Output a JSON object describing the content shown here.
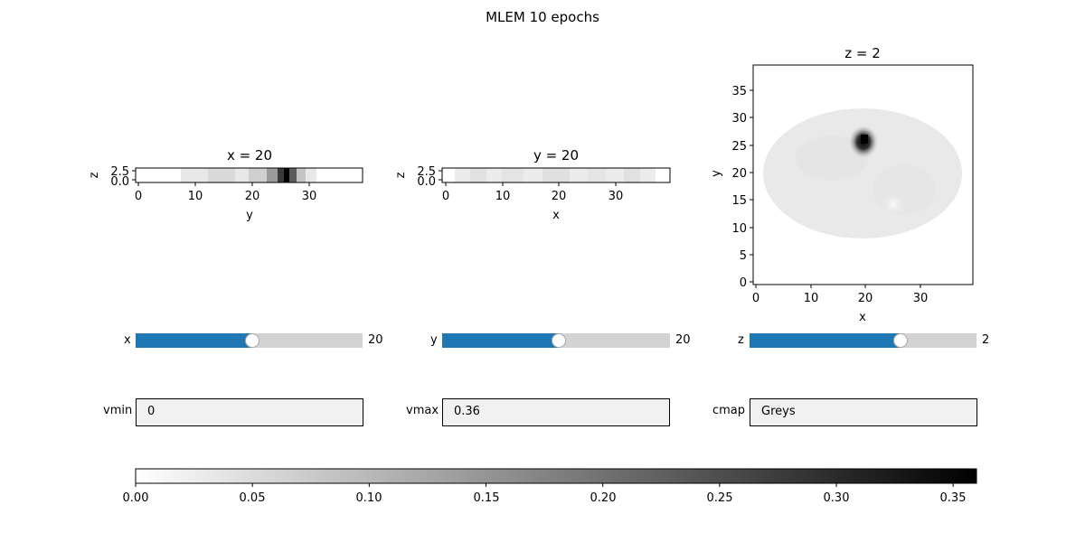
{
  "figure": {
    "title": "MLEM 10 epochs"
  },
  "panels": {
    "x_slice": {
      "title": "x = 20",
      "xlabel": "y",
      "ylabel": "z",
      "xticks": [
        "0",
        "10",
        "20",
        "30"
      ],
      "yticks": [
        "2.5",
        "0.0"
      ]
    },
    "y_slice": {
      "title": "y = 20",
      "xlabel": "x",
      "ylabel": "z",
      "xticks": [
        "0",
        "10",
        "20",
        "30"
      ],
      "yticks": [
        "2.5",
        "0.0"
      ]
    },
    "z_slice": {
      "title": "z = 2",
      "xlabel": "x",
      "ylabel": "y",
      "xticks": [
        "0",
        "10",
        "20",
        "30"
      ],
      "yticks": [
        "35",
        "30",
        "25",
        "20",
        "15",
        "10",
        "5",
        "0"
      ]
    }
  },
  "sliders": {
    "x": {
      "label": "x",
      "value": "20",
      "min": 0,
      "max": 39,
      "val": 20
    },
    "y": {
      "label": "y",
      "value": "20",
      "min": 0,
      "max": 39,
      "val": 20
    },
    "z": {
      "label": "z",
      "value": "2",
      "min": 0,
      "max": 3,
      "val": 2
    }
  },
  "textboxes": {
    "vmin": {
      "label": "vmin",
      "value": "0"
    },
    "vmax": {
      "label": "vmax",
      "value": "0.36"
    },
    "cmap": {
      "label": "cmap",
      "value": "Greys"
    }
  },
  "colorbar": {
    "ticks": [
      "0.00",
      "0.05",
      "0.10",
      "0.15",
      "0.20",
      "0.25",
      "0.30",
      "0.35"
    ],
    "tick_values": [
      0,
      0.05,
      0.1,
      0.15,
      0.2,
      0.25,
      0.3,
      0.35
    ],
    "vmin": 0,
    "vmax": 0.36
  },
  "colors": {
    "slider_fill": "#1f77b4",
    "slider_track": "#d3d3d3",
    "textbox_bg": "#f1f1f1"
  }
}
